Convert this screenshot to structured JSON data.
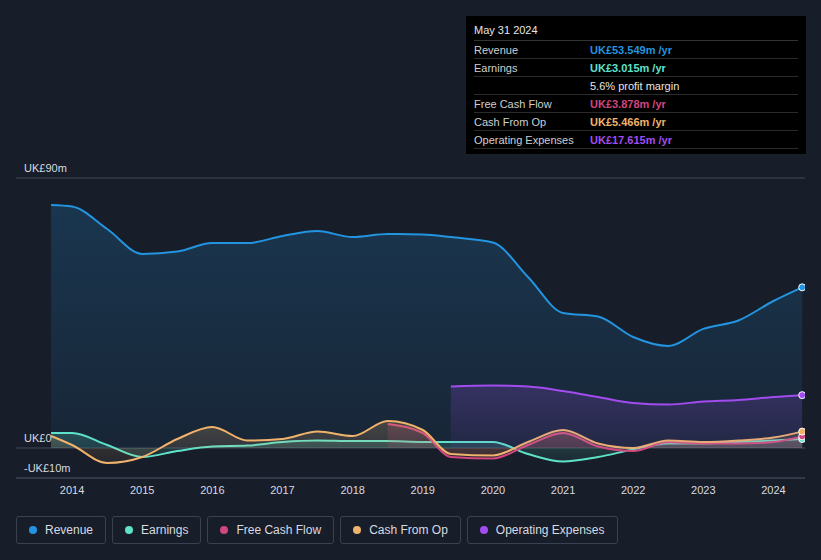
{
  "chart_data": {
    "type": "area",
    "x": [
      2013.7,
      2014.0,
      2014.5,
      2015.0,
      2015.5,
      2016.0,
      2016.5,
      2017.0,
      2017.5,
      2018.0,
      2018.5,
      2019.0,
      2019.4,
      2020.0,
      2020.5,
      2021.0,
      2021.5,
      2022.0,
      2022.5,
      2023.0,
      2023.5,
      2024.0,
      2024.41
    ],
    "series": [
      {
        "name": "Revenue",
        "color": "#2394df",
        "values": [
          81,
          80.5,
          73,
          64.7,
          65.5,
          68.3,
          68.3,
          70.7,
          72.3,
          70.3,
          71.3,
          71.2,
          70.3,
          68.5,
          57,
          45,
          43.8,
          37,
          34,
          39.7,
          42.5,
          49,
          53.549
        ]
      },
      {
        "name": "Earnings",
        "color": "#5ee2c8",
        "values": [
          5,
          5,
          1,
          -3,
          -1,
          0.5,
          0.8,
          2,
          2.5,
          2.3,
          2.3,
          2,
          2,
          2,
          -2,
          -4.5,
          -3,
          -0.5,
          1.5,
          1.5,
          2,
          2.5,
          3.015
        ]
      },
      {
        "name": "Free Cash Flow",
        "color": "#d0467f",
        "values": [
          null,
          null,
          null,
          null,
          null,
          null,
          null,
          null,
          null,
          null,
          8,
          5,
          -3,
          -3.5,
          1,
          5,
          0.5,
          -1,
          2,
          1.5,
          1.5,
          2,
          3.878
        ]
      },
      {
        "name": "Cash From Op",
        "color": "#f0b36b",
        "values": [
          4,
          1,
          -5,
          -3,
          3,
          7,
          2.5,
          3,
          5.5,
          4,
          9,
          6,
          -2,
          -2.5,
          2,
          6,
          1.5,
          0,
          2.5,
          2,
          2.5,
          3.5,
          5.466
        ]
      },
      {
        "name": "Operating Expenses",
        "color": "#a24cf0",
        "values": [
          null,
          null,
          null,
          null,
          null,
          null,
          null,
          null,
          null,
          null,
          null,
          null,
          20.5,
          20.8,
          20.5,
          19,
          17,
          15,
          14.5,
          15.5,
          16,
          17,
          17.615
        ]
      }
    ],
    "xlim": [
      2013.2,
      2024.45
    ],
    "xticks": [
      2014,
      2015,
      2016,
      2017,
      2018,
      2019,
      2020,
      2021,
      2022,
      2023,
      2024
    ],
    "ylim": [
      -10,
      90
    ],
    "yticks": [
      {
        "value": 90,
        "label": "UK£90m"
      },
      {
        "value": 0,
        "label": "UK£0"
      },
      {
        "value": -10,
        "label": "-UK£10m"
      }
    ],
    "grid": true,
    "legend": "bottom left",
    "annotations": {
      "date": "May 31 2024",
      "rows": [
        {
          "label": "Revenue",
          "value": "UK£53.549m /yr"
        },
        {
          "label": "Earnings",
          "value": "UK£3.015m /yr"
        },
        {
          "value": "5.6% profit margin"
        },
        {
          "label": "Free Cash Flow",
          "value": "UK£3.878m /yr"
        },
        {
          "label": "Cash From Op",
          "value": "UK£5.466m /yr"
        },
        {
          "label": "Operating Expenses",
          "value": "UK£17.615m /yr"
        }
      ]
    }
  }
}
